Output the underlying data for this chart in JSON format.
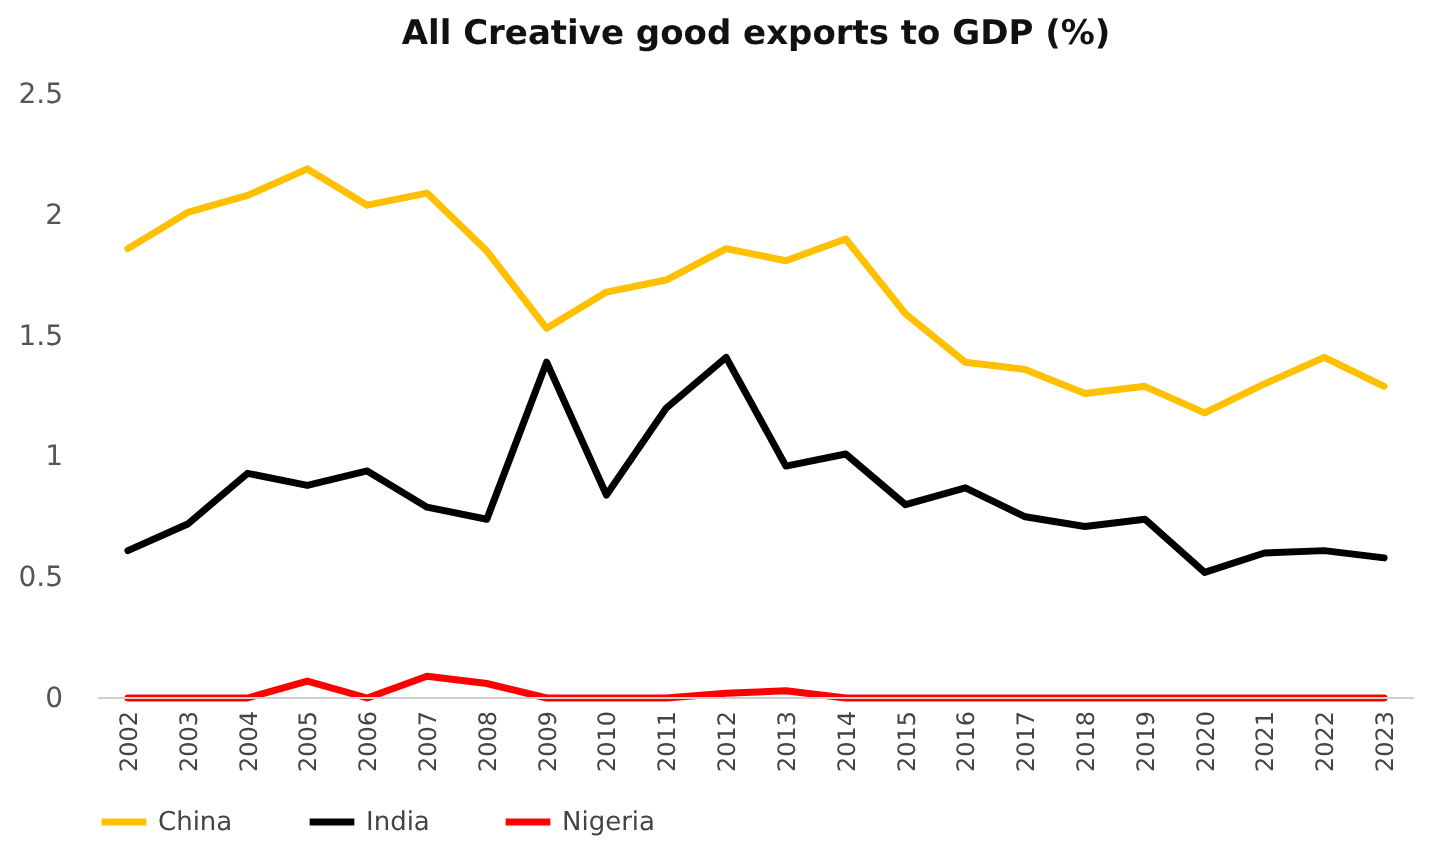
{
  "chart_data": {
    "type": "line",
    "title": "All Creative good exports to GDP (%)",
    "categories": [
      "2002",
      "2003",
      "2004",
      "2005",
      "2006",
      "2007",
      "2008",
      "2009",
      "2010",
      "2011",
      "2012",
      "2013",
      "2014",
      "2015",
      "2016",
      "2017",
      "2018",
      "2019",
      "2020",
      "2021",
      "2022",
      "2023"
    ],
    "series": [
      {
        "name": "China",
        "color": "#ffc000",
        "values": [
          1.86,
          2.01,
          2.08,
          2.19,
          2.04,
          2.09,
          1.85,
          1.53,
          1.68,
          1.73,
          1.86,
          1.81,
          1.9,
          1.59,
          1.39,
          1.36,
          1.26,
          1.29,
          1.18,
          1.3,
          1.41,
          1.29
        ]
      },
      {
        "name": "India",
        "color": "#000000",
        "values": [
          0.61,
          0.72,
          0.93,
          0.88,
          0.94,
          0.79,
          0.74,
          1.39,
          0.84,
          1.2,
          1.41,
          0.96,
          1.01,
          0.8,
          0.87,
          0.75,
          0.71,
          0.74,
          0.52,
          0.6,
          0.61,
          0.58
        ]
      },
      {
        "name": "Nigeria",
        "color": "#ff0000",
        "values": [
          0,
          0,
          0,
          0.07,
          0,
          0.09,
          0.06,
          0,
          0,
          0,
          0.02,
          0.03,
          0,
          0,
          0,
          0,
          0,
          0,
          0,
          0,
          0,
          0
        ]
      }
    ],
    "ylim": [
      0,
      2.5
    ],
    "yticks": [
      0,
      0.5,
      1,
      1.5,
      2,
      2.5
    ],
    "grid": false,
    "legend": "bottom",
    "marker": "none",
    "line_style": "solid"
  }
}
